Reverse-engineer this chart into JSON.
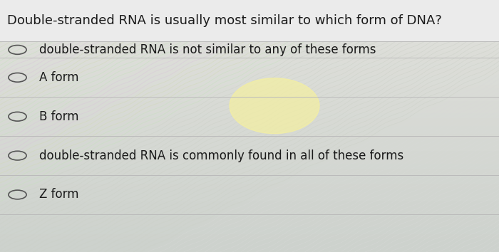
{
  "title": "Double-stranded RNA is usually most similar to which form of DNA?",
  "options": [
    "double-stranded RNA is not similar to any of these forms",
    "A form",
    "B form",
    "double-stranded RNA is commonly found in all of these forms",
    "Z form"
  ],
  "title_fontsize": 13.0,
  "option_fontsize": 12.0,
  "title_color": "#1a1a1a",
  "option_color": "#1a1a1a",
  "separator_color": "#bbbbbb",
  "circle_color": "#555555",
  "fig_width": 7.0,
  "fig_height": 3.54,
  "dpi": 100,
  "title_bg": "#e8e8e8",
  "body_bg_top": "#d8d8d6",
  "body_bg_bottom": "#c8c8be"
}
